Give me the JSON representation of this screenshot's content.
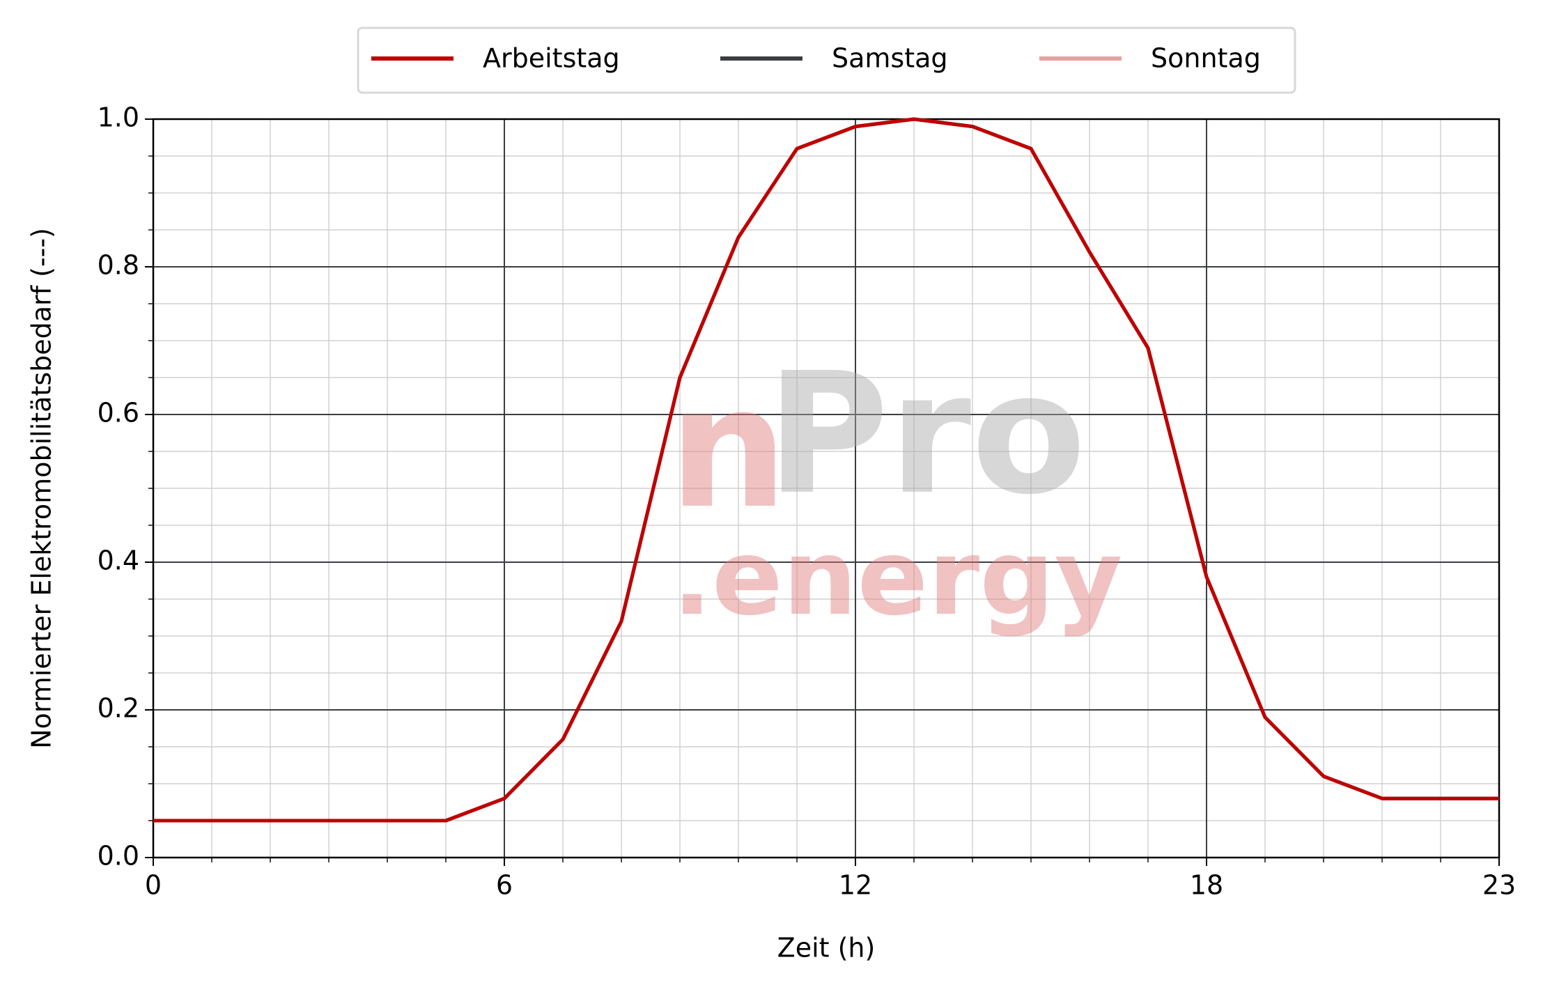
{
  "chart_data": {
    "type": "line",
    "x_label": "Zeit (h)",
    "y_label": "Normierter Elektromobilitätsbedarf (---)",
    "x": [
      0,
      1,
      2,
      3,
      4,
      5,
      6,
      7,
      8,
      9,
      10,
      11,
      12,
      13,
      14,
      15,
      16,
      17,
      18,
      19,
      20,
      21,
      22,
      23
    ],
    "series": [
      {
        "name": "Arbeitstag",
        "color": "#c00000",
        "values": [
          0.05,
          0.05,
          0.05,
          0.05,
          0.05,
          0.05,
          0.08,
          0.16,
          0.32,
          0.65,
          0.84,
          0.96,
          0.99,
          1.0,
          0.99,
          0.96,
          0.82,
          0.69,
          0.38,
          0.19,
          0.11,
          0.08,
          0.08,
          0.08
        ]
      },
      {
        "name": "Samstag",
        "color": "#3a3d42",
        "values": [
          0.05,
          0.05,
          0.05,
          0.05,
          0.05,
          0.05,
          0.08,
          0.16,
          0.32,
          0.65,
          0.84,
          0.96,
          0.99,
          1.0,
          0.99,
          0.96,
          0.82,
          0.69,
          0.38,
          0.19,
          0.11,
          0.08,
          0.08,
          0.08
        ]
      },
      {
        "name": "Sonntag",
        "color": "#e8a0a0",
        "values": [
          0.05,
          0.05,
          0.05,
          0.05,
          0.05,
          0.05,
          0.08,
          0.16,
          0.32,
          0.65,
          0.84,
          0.96,
          0.99,
          1.0,
          0.99,
          0.96,
          0.82,
          0.69,
          0.38,
          0.19,
          0.11,
          0.08,
          0.08,
          0.08
        ]
      }
    ],
    "xlim": [
      0,
      23
    ],
    "xticks": [
      0,
      6,
      12,
      18,
      23
    ],
    "ylim": [
      0,
      1
    ],
    "yticks": [
      {
        "value": 0,
        "label": "0.0"
      },
      0.2,
      0.4,
      0.6,
      0.8,
      {
        "value": 1,
        "label": "1.0"
      }
    ],
    "grid": true,
    "minor_grid": true,
    "legend": "top",
    "watermark": [
      "n",
      "Pro",
      ".energy"
    ]
  }
}
